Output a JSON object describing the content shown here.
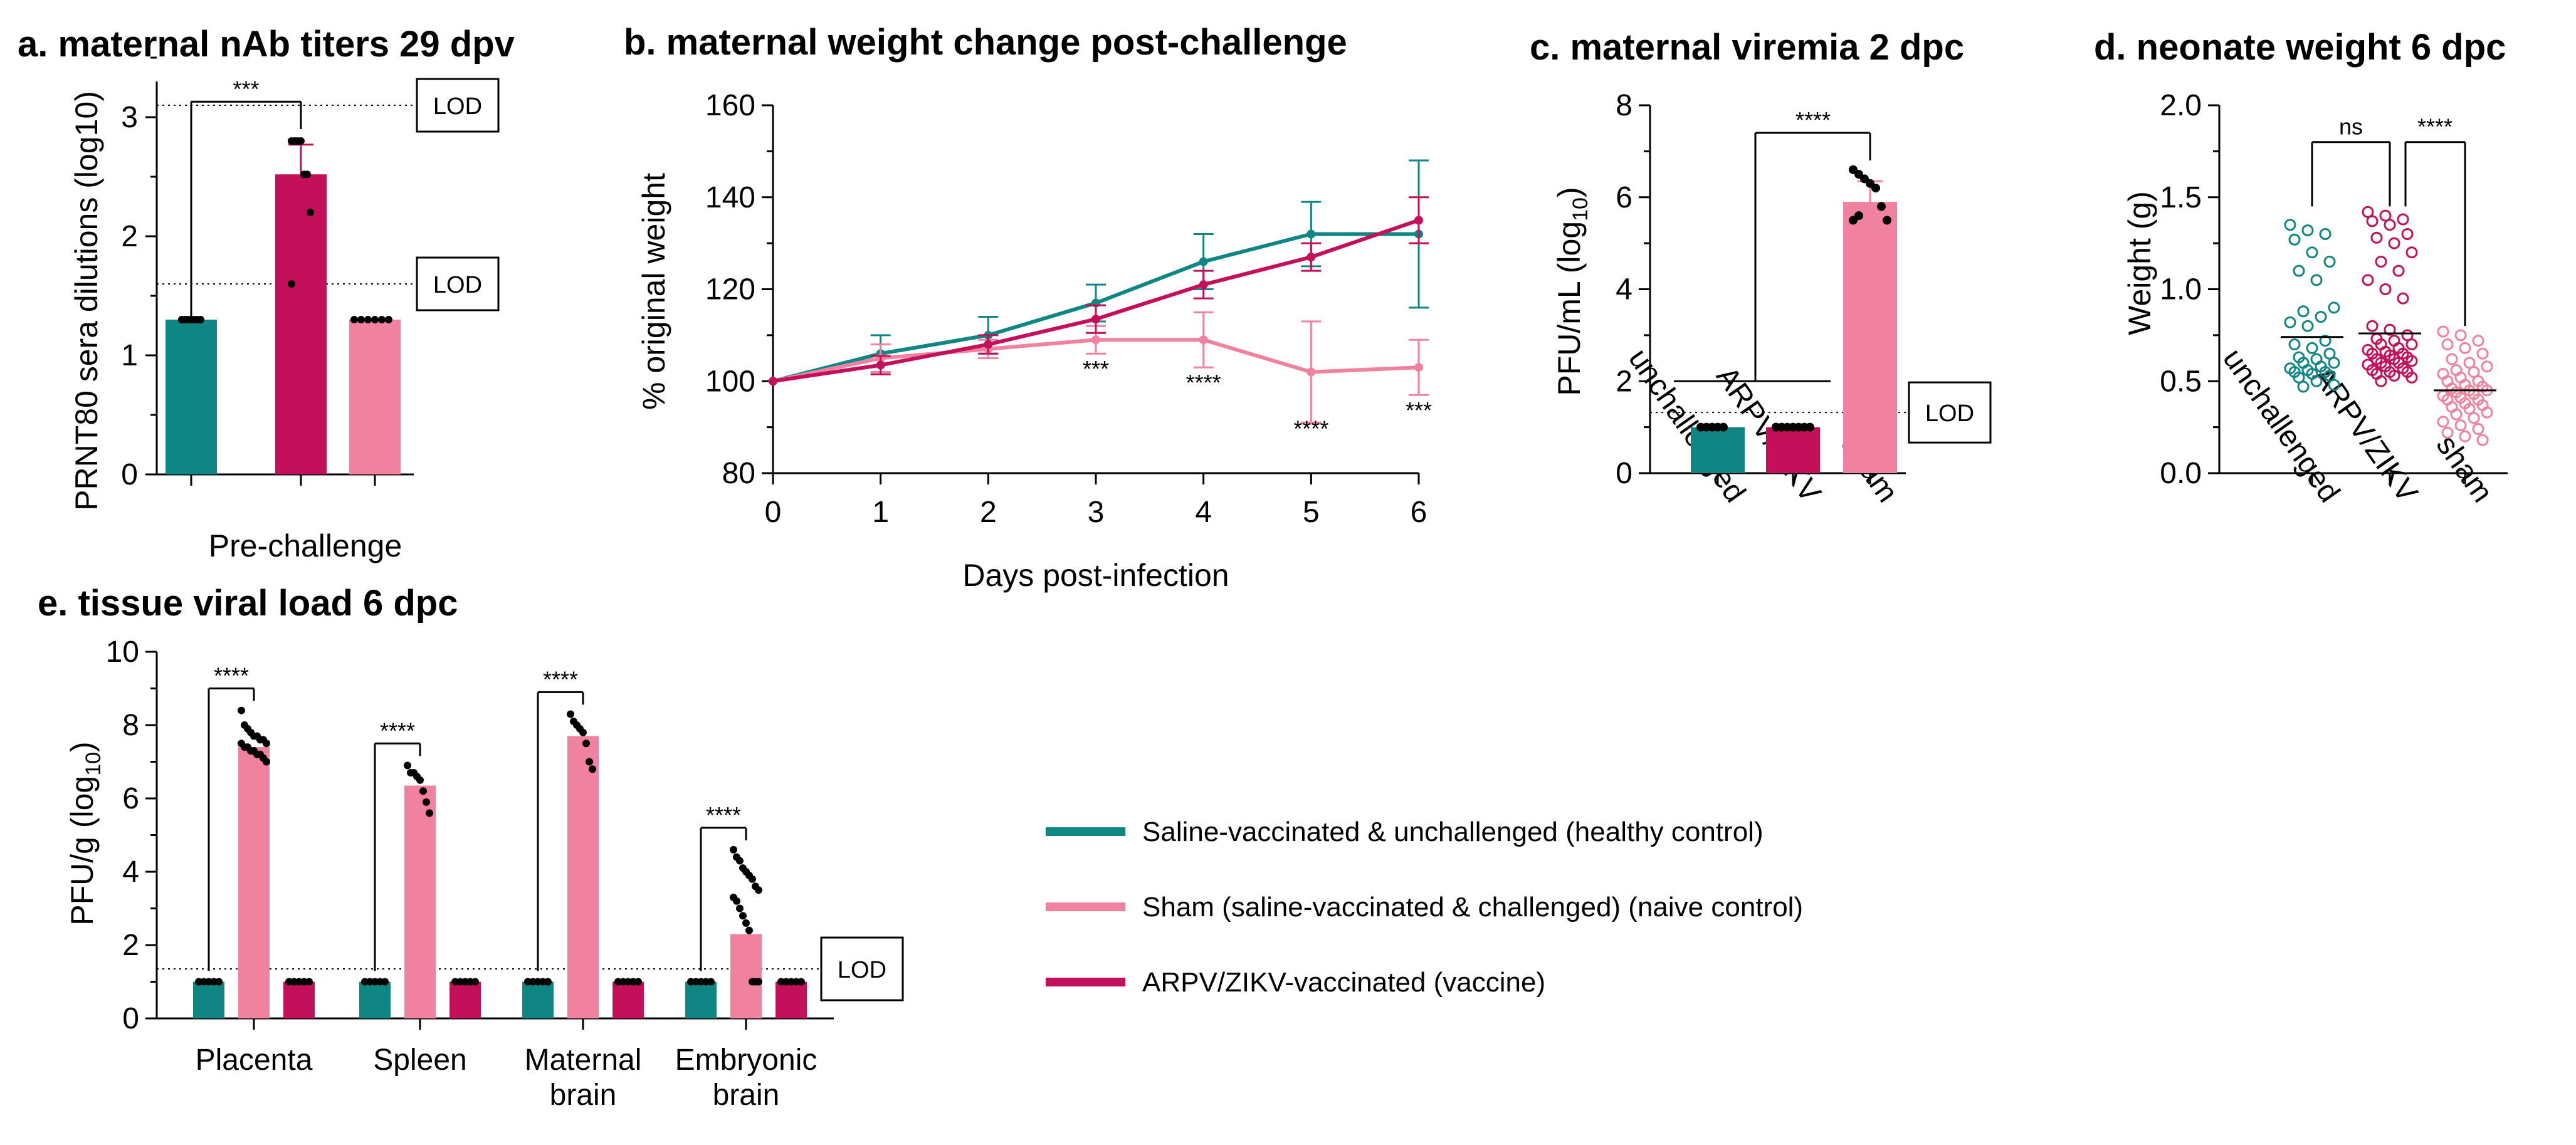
{
  "colors": {
    "teal": "#0f8683",
    "magenta": "#c40f5b",
    "pink": "#f1829f",
    "axis": "#000000"
  },
  "legend": [
    {
      "label": "Saline-vaccinated & unchallenged (healthy control)",
      "color": "#0f8683"
    },
    {
      "label": "Sham (saline-vaccinated & challenged) (naive control)",
      "color": "#f1829f"
    },
    {
      "label": "ARPV/ZIKV-vaccinated (vaccine)",
      "color": "#c40f5b"
    }
  ],
  "chart_data": [
    {
      "id": "a",
      "type": "bar",
      "title": "a. maternal nAb titers 29 dpv",
      "ylabel": "PRNT80 sera dilutions (log10)",
      "xlabel": "Pre-challenge",
      "ylim": [
        0,
        3.3
      ],
      "yticks": [
        "0",
        "1",
        "2",
        "3"
      ],
      "bars": [
        {
          "group": "saline",
          "value": 1.3,
          "err": 0,
          "points": [
            1.3,
            1.3,
            1.3,
            1.3,
            1.3,
            1.3,
            1.3,
            1.3
          ]
        },
        {
          "group": "vaccine",
          "value": 2.52,
          "err": 0.25,
          "points": [
            2.8,
            2.8,
            2.8,
            2.8,
            2.52,
            2.52,
            2.2,
            1.6
          ]
        },
        {
          "group": "sham",
          "value": 1.3,
          "err": 0,
          "points": [
            1.3,
            1.3,
            1.3,
            1.3,
            1.3,
            1.3
          ]
        }
      ],
      "lod_lines": [
        {
          "label": "LOD",
          "value": 3.1
        },
        {
          "label": "LOD",
          "value": 1.6
        }
      ],
      "significance": [
        {
          "label": "***",
          "between": [
            0,
            1
          ]
        }
      ]
    },
    {
      "id": "b",
      "type": "line",
      "title": "b. maternal weight change post-challenge",
      "ylabel": "% original weight",
      "xlabel": "Days post-infection",
      "x": [
        0,
        1,
        2,
        3,
        4,
        5,
        6
      ],
      "xticks": [
        "0",
        "1",
        "2",
        "3",
        "4",
        "5",
        "6"
      ],
      "ylim": [
        80,
        160
      ],
      "yticks": [
        "80",
        "100",
        "120",
        "140",
        "160"
      ],
      "series": [
        {
          "name": "Saline-vaccinated & unchallenged",
          "color": "#0f8683",
          "values": [
            100,
            106,
            110,
            117,
            126,
            132,
            132
          ],
          "err": [
            0,
            4,
            4,
            4,
            6,
            7,
            16
          ]
        },
        {
          "name": "Sham",
          "color": "#f1829f",
          "values": [
            100,
            105,
            107,
            109,
            109,
            102,
            103
          ],
          "err": [
            0,
            3,
            2,
            3,
            6,
            11,
            6
          ]
        },
        {
          "name": "ARPV/ZIKV-vaccinated",
          "color": "#c40f5b",
          "values": [
            100,
            103.5,
            108,
            113.5,
            121,
            127,
            135
          ],
          "err": [
            0,
            2,
            2,
            3,
            3,
            3,
            5
          ]
        }
      ],
      "annotations": [
        {
          "label": "***",
          "x": 3,
          "y": 101
        },
        {
          "label": "****",
          "x": 4,
          "y": 98
        },
        {
          "label": "****",
          "x": 5,
          "y": 88
        },
        {
          "label": "***",
          "x": 6,
          "y": 92
        }
      ]
    },
    {
      "id": "c",
      "type": "bar",
      "title": "c. maternal viremia 2 dpc",
      "ylabel_main": "PFU/mL (log",
      "ylabel_sub": "10",
      "ylabel_end": ")",
      "categories": [
        "unchallenged",
        "ARPV/ZIKV",
        "sham"
      ],
      "ylim": [
        0,
        8
      ],
      "yticks": [
        "0",
        "2",
        "4",
        "6",
        "8"
      ],
      "bars": [
        {
          "group": "saline",
          "value": 1.0,
          "err": 0,
          "points": [
            1,
            1,
            1,
            1,
            1
          ]
        },
        {
          "group": "vaccine",
          "value": 1.0,
          "err": 0,
          "points": [
            1,
            1,
            1,
            1,
            1,
            1,
            1,
            1
          ]
        },
        {
          "group": "sham",
          "value": 5.9,
          "err": 0.45,
          "points": [
            6.6,
            6.5,
            6.4,
            6.3,
            6.2,
            5.8,
            5.5,
            5.5,
            5.6
          ]
        }
      ],
      "lod": {
        "label": "LOD",
        "value": 1.32
      },
      "significance": [
        {
          "label": "****"
        }
      ]
    },
    {
      "id": "d",
      "type": "scatter",
      "title": "d. neonate weight 6 dpc",
      "ylabel": "Weight (g)",
      "categories": [
        "unchallenged",
        "ARPV/ZIKV",
        "sham"
      ],
      "ylim": [
        0,
        2.0
      ],
      "yticks": [
        "0.0",
        "0.5",
        "1.0",
        "1.5",
        "2.0"
      ],
      "groups": [
        {
          "group": "saline",
          "median": 0.74,
          "points": [
            1.35,
            1.32,
            1.3,
            1.27,
            1.2,
            1.15,
            1.1,
            1.05,
            0.9,
            0.88,
            0.85,
            0.82,
            0.8,
            0.72,
            0.7,
            0.68,
            0.65,
            0.63,
            0.62,
            0.6,
            0.6,
            0.58,
            0.57,
            0.56,
            0.55,
            0.55,
            0.54,
            0.53,
            0.52,
            0.5,
            0.48,
            0.47
          ]
        },
        {
          "group": "vaccine",
          "median": 0.76,
          "points": [
            1.42,
            1.4,
            1.38,
            1.37,
            1.35,
            1.3,
            1.28,
            1.25,
            1.2,
            1.15,
            1.1,
            1.05,
            1.0,
            0.95,
            0.8,
            0.78,
            0.75,
            0.73,
            0.72,
            0.7,
            0.7,
            0.68,
            0.67,
            0.66,
            0.65,
            0.65,
            0.64,
            0.63,
            0.62,
            0.62,
            0.61,
            0.6,
            0.6,
            0.59,
            0.58,
            0.57,
            0.56,
            0.55,
            0.55,
            0.54,
            0.53,
            0.52,
            0.5
          ]
        },
        {
          "group": "sham",
          "median": 0.45,
          "points": [
            0.77,
            0.75,
            0.72,
            0.7,
            0.68,
            0.65,
            0.62,
            0.6,
            0.58,
            0.56,
            0.55,
            0.54,
            0.52,
            0.5,
            0.5,
            0.48,
            0.47,
            0.46,
            0.45,
            0.45,
            0.44,
            0.43,
            0.42,
            0.41,
            0.4,
            0.4,
            0.38,
            0.37,
            0.36,
            0.35,
            0.33,
            0.32,
            0.3,
            0.28,
            0.26,
            0.24,
            0.22,
            0.2,
            0.18
          ]
        }
      ],
      "significance": [
        {
          "label": "ns"
        },
        {
          "label": "****"
        }
      ]
    },
    {
      "id": "e",
      "type": "bar",
      "title": "e. tissue viral load 6 dpc",
      "ylabel_main": "PFU/g (log",
      "ylabel_sub": "10",
      "ylabel_end": ")",
      "ylim": [
        0,
        10
      ],
      "yticks": [
        "0",
        "2",
        "4",
        "6",
        "8",
        "10"
      ],
      "categories": [
        {
          "lines": [
            "Placenta"
          ]
        },
        {
          "lines": [
            "Spleen"
          ]
        },
        {
          "lines": [
            "Maternal",
            "brain"
          ]
        },
        {
          "lines": [
            "Embryonic",
            "brain"
          ]
        }
      ],
      "series": [
        {
          "name": "saline",
          "values": [
            1.0,
            1.0,
            1.0,
            1.0
          ]
        },
        {
          "name": "sham",
          "values": [
            7.4,
            6.35,
            7.7,
            2.3
          ]
        },
        {
          "name": "vaccine",
          "values": [
            1.0,
            1.0,
            1.0,
            1.0
          ]
        }
      ],
      "sham_points": [
        [
          8.4,
          8.0,
          7.9,
          7.8,
          7.7,
          7.7,
          7.6,
          7.6,
          7.5,
          7.5,
          7.4,
          7.4,
          7.3,
          7.3,
          7.2,
          7.2,
          7.1,
          7.0
        ],
        [
          6.9,
          6.7,
          6.7,
          6.6,
          6.5,
          6.2,
          5.9,
          5.6
        ],
        [
          8.3,
          8.1,
          8.0,
          7.9,
          7.8,
          7.5,
          7.0,
          6.8
        ],
        [
          4.6,
          4.4,
          4.3,
          4.1,
          4.0,
          3.9,
          3.8,
          3.6,
          3.5,
          3.3,
          3.2,
          3.0,
          2.8,
          2.6,
          2.4,
          1.0,
          1.0,
          1.0
        ]
      ],
      "lod": {
        "label": "LOD",
        "value": 1.35
      },
      "significance": [
        {
          "label": "****"
        },
        {
          "label": "****"
        },
        {
          "label": "****"
        },
        {
          "label": "****"
        }
      ]
    }
  ]
}
